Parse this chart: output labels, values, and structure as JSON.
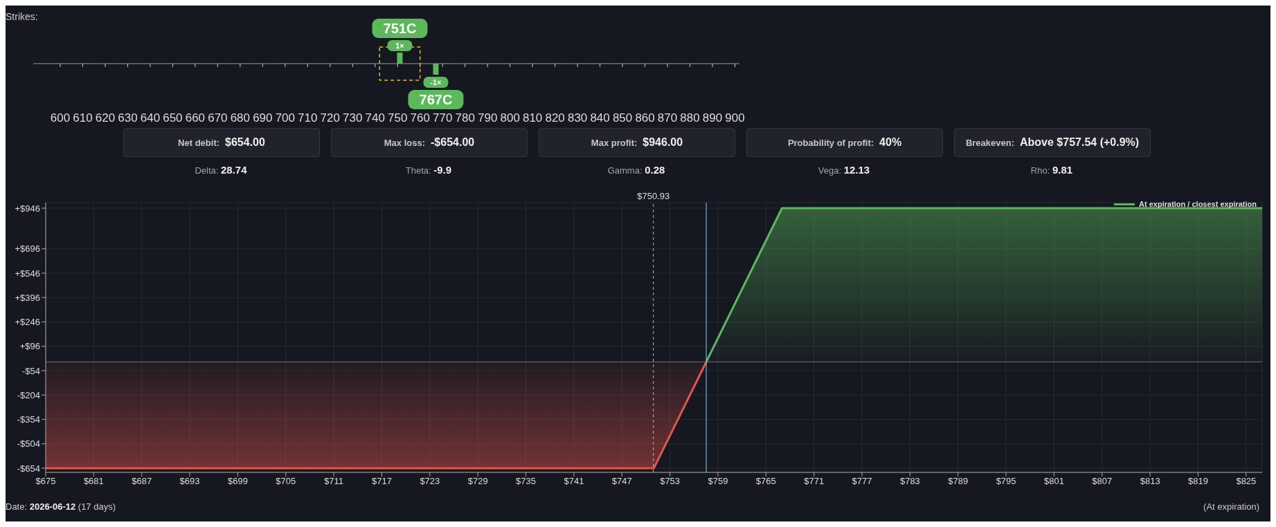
{
  "chart_data": [
    {
      "type": "bar",
      "title": "Strikes:",
      "xlim": [
        588,
        902
      ],
      "xticks": [
        600,
        610,
        620,
        630,
        640,
        650,
        660,
        670,
        680,
        690,
        700,
        710,
        720,
        730,
        740,
        750,
        760,
        770,
        780,
        790,
        800,
        810,
        820,
        830,
        840,
        850,
        860,
        870,
        880,
        890,
        900
      ],
      "x": [
        751,
        767
      ],
      "values": [
        1,
        -1
      ],
      "colors": [
        "#5cb85c",
        "#5cb85c"
      ],
      "value_labels": [
        "1×",
        "-1×"
      ],
      "annotations": [
        "751C",
        "767C"
      ]
    },
    {
      "type": "other",
      "annotations": [
        "Net debit: $654.00",
        "Max loss: -$654.00",
        "Max profit: $946.00",
        "Probability of profit: 40%",
        "Breakeven: Above $757.54 (+0.9%)",
        "Delta: 28.74",
        "Theta: -9.9",
        "Gamma: 0.28",
        "Vega: 12.13",
        "Rho: 9.81"
      ]
    },
    {
      "type": "area",
      "xlim": [
        675,
        827
      ],
      "ylim": [
        -680,
        980
      ],
      "xticks": [
        {
          "value": 675,
          "label": "$675"
        },
        {
          "value": 681,
          "label": "$681"
        },
        {
          "value": 687,
          "label": "$687"
        },
        {
          "value": 693,
          "label": "$693"
        },
        {
          "value": 699,
          "label": "$699"
        },
        {
          "value": 705,
          "label": "$705"
        },
        {
          "value": 711,
          "label": "$711"
        },
        {
          "value": 717,
          "label": "$717"
        },
        {
          "value": 723,
          "label": "$723"
        },
        {
          "value": 729,
          "label": "$729"
        },
        {
          "value": 735,
          "label": "$735"
        },
        {
          "value": 741,
          "label": "$741"
        },
        {
          "value": 747,
          "label": "$747"
        },
        {
          "value": 753,
          "label": "$753"
        },
        {
          "value": 759,
          "label": "$759"
        },
        {
          "value": 765,
          "label": "$765"
        },
        {
          "value": 771,
          "label": "$771"
        },
        {
          "value": 777,
          "label": "$777"
        },
        {
          "value": 783,
          "label": "$783"
        },
        {
          "value": 789,
          "label": "$789"
        },
        {
          "value": 795,
          "label": "$795"
        },
        {
          "value": 801,
          "label": "$801"
        },
        {
          "value": 807,
          "label": "$807"
        },
        {
          "value": 813,
          "label": "$813"
        },
        {
          "value": 819,
          "label": "$819"
        },
        {
          "value": 825,
          "label": "$825"
        }
      ],
      "yticks": [
        {
          "value": 946,
          "label": "+$946"
        },
        {
          "value": 696,
          "label": "+$696"
        },
        {
          "value": 546,
          "label": "+$546"
        },
        {
          "value": 396,
          "label": "+$396"
        },
        {
          "value": 246,
          "label": "+$246"
        },
        {
          "value": 96,
          "label": "+$96"
        },
        {
          "value": -54,
          "label": "-$54"
        },
        {
          "value": -204,
          "label": "-$204"
        },
        {
          "value": -354,
          "label": "-$354"
        },
        {
          "value": -504,
          "label": "-$504"
        },
        {
          "value": -654,
          "label": "-$654"
        }
      ],
      "series": [
        {
          "name": "At expiration / closest expiration",
          "color": "#5cb85c",
          "x": [
            757.54,
            767,
            827
          ],
          "values": [
            0,
            946,
            946
          ]
        },
        {
          "color": "#e5534b",
          "x": [
            675,
            751,
            757.54
          ],
          "values": [
            -654,
            -654,
            0
          ]
        }
      ],
      "ref_lines": [
        {
          "axis": "x",
          "value": 750.93,
          "label": "$750.93",
          "line_style": "dashed",
          "color": "#bbbbbb"
        },
        {
          "axis": "x",
          "value": 757.54,
          "color": "#8fc8e6"
        },
        {
          "axis": "y",
          "value": 0,
          "color": "#777777"
        }
      ],
      "grid": true,
      "legend": "top right",
      "marker": "none",
      "annotations": [
        "Date: 2026-06-12 (17 days)",
        "(At expiration)"
      ]
    }
  ]
}
